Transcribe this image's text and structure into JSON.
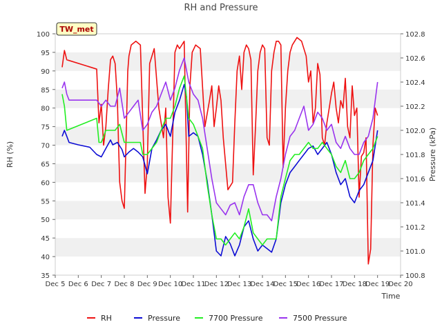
{
  "chart_data": {
    "type": "line",
    "title": "RH and Pressure",
    "xlabel": "Time",
    "ylabel_left": "RH (%)",
    "ylabel_right": "Pressure (kPa)",
    "station_label": "TW_met",
    "x_tick_labels": [
      "Dec 5",
      "Dec 6",
      "Dec 7",
      "Dec 8",
      "Dec 9",
      "Dec 10",
      "Dec 11",
      "Dec 12",
      "Dec 13",
      "Dec 14",
      "Dec 15",
      "Dec 16",
      "Dec 17",
      "Dec 18",
      "Dec 19",
      "Dec 20"
    ],
    "xlim": [
      5,
      20
    ],
    "ylim_left": [
      35,
      100
    ],
    "ylim_right": [
      100.8,
      102.8
    ],
    "y_ticks_left": [
      35,
      40,
      45,
      50,
      55,
      60,
      65,
      70,
      75,
      80,
      85,
      90,
      95,
      100
    ],
    "y_ticks_right": [
      "100.8",
      "101.0",
      "101.2",
      "101.4",
      "101.6",
      "101.8",
      "102.0",
      "102.2",
      "102.4",
      "102.6",
      "102.8"
    ],
    "grid": "horizontal bands",
    "legend_position": "bottom",
    "series": [
      {
        "name": "RH",
        "axis": "left",
        "color": "#ee1111",
        "x": [
          5.3,
          5.4,
          5.5,
          6.8,
          6.9,
          7.0,
          7.1,
          7.2,
          7.3,
          7.4,
          7.5,
          7.6,
          7.7,
          7.75,
          7.8,
          7.9,
          8.0,
          8.1,
          8.15,
          8.2,
          8.3,
          8.5,
          8.7,
          8.9,
          9.0,
          9.1,
          9.3,
          9.5,
          9.7,
          9.8,
          9.9,
          10.0,
          10.1,
          10.2,
          10.3,
          10.4,
          10.6,
          10.75,
          10.85,
          10.95,
          11.1,
          11.3,
          11.5,
          11.7,
          11.8,
          11.9,
          12.0,
          12.1,
          12.2,
          12.3,
          12.5,
          12.7,
          12.8,
          12.9,
          13.0,
          13.1,
          13.2,
          13.3,
          13.4,
          13.5,
          13.6,
          13.7,
          13.8,
          13.9,
          14.0,
          14.1,
          14.2,
          14.3,
          14.4,
          14.5,
          14.6,
          14.7,
          14.8,
          14.9,
          15.0,
          15.1,
          15.2,
          15.3,
          15.5,
          15.7,
          15.9,
          16.0,
          16.1,
          16.2,
          16.3,
          16.4,
          16.5,
          16.6,
          16.7,
          16.8,
          16.9,
          17.0,
          17.1,
          17.2,
          17.3,
          17.4,
          17.5,
          17.6,
          17.7,
          17.8,
          17.9,
          18.0,
          18.1,
          18.2,
          18.3,
          18.4,
          18.5,
          18.6,
          18.7,
          18.8,
          18.9,
          19.0
        ],
        "y": [
          91,
          95.5,
          93,
          90.5,
          76,
          81,
          70,
          75,
          85,
          93,
          94,
          92,
          82,
          70,
          60,
          55,
          53,
          77,
          90,
          94,
          97,
          98,
          97,
          57,
          65,
          92,
          96,
          80,
          72,
          80,
          56,
          49,
          72,
          95,
          97,
          96,
          98,
          52,
          86,
          95,
          97,
          96,
          75,
          82,
          86,
          75,
          80,
          86,
          82,
          72,
          58,
          60,
          76,
          90,
          94,
          85,
          95,
          97,
          96,
          93,
          62,
          75,
          90,
          95,
          97,
          96,
          72,
          70,
          90,
          95,
          98,
          98,
          97,
          64,
          80,
          90,
          95,
          97,
          99,
          98,
          94,
          87,
          90,
          76,
          80,
          92,
          89,
          72,
          70,
          76,
          80,
          84,
          87,
          80,
          76,
          82,
          80,
          88,
          75,
          72,
          86,
          78,
          80,
          56,
          67,
          68,
          72,
          38,
          42,
          70,
          80,
          78
        ]
      },
      {
        "name": "Pressure",
        "axis": "right",
        "color": "#0b0bd4",
        "x": [
          5.3,
          5.4,
          5.5,
          5.6,
          6.0,
          6.5,
          6.8,
          7.0,
          7.2,
          7.4,
          7.5,
          7.7,
          7.9,
          8.0,
          8.2,
          8.4,
          8.6,
          8.8,
          9.0,
          9.2,
          9.4,
          9.6,
          9.8,
          10.0,
          10.2,
          10.4,
          10.6,
          10.7,
          10.8,
          11.0,
          11.2,
          11.4,
          11.6,
          11.8,
          11.9,
          12.0,
          12.2,
          12.4,
          12.6,
          12.8,
          13.0,
          13.2,
          13.4,
          13.6,
          13.8,
          14.0,
          14.2,
          14.4,
          14.6,
          14.8,
          15.0,
          15.2,
          15.4,
          15.6,
          15.8,
          16.0,
          16.2,
          16.4,
          16.6,
          16.8,
          17.0,
          17.2,
          17.4,
          17.6,
          17.8,
          18.0,
          18.2,
          18.4,
          18.6,
          18.8,
          19.0
        ],
        "y": [
          101.95,
          102.0,
          101.95,
          101.9,
          101.88,
          101.86,
          101.8,
          101.78,
          101.85,
          101.92,
          101.88,
          101.9,
          101.84,
          101.78,
          101.82,
          101.85,
          101.82,
          101.78,
          101.64,
          101.85,
          101.92,
          102.0,
          102.05,
          101.95,
          102.15,
          102.25,
          102.38,
          102.28,
          101.95,
          101.98,
          101.95,
          101.8,
          101.58,
          101.3,
          101.15,
          101.0,
          100.96,
          101.12,
          101.06,
          100.96,
          101.05,
          101.2,
          101.25,
          101.1,
          101.0,
          101.05,
          101.02,
          100.99,
          101.1,
          101.4,
          101.55,
          101.65,
          101.7,
          101.75,
          101.8,
          101.85,
          101.87,
          101.8,
          101.85,
          101.9,
          101.8,
          101.65,
          101.55,
          101.6,
          101.45,
          101.4,
          101.5,
          101.55,
          101.65,
          101.75,
          102.0
        ]
      },
      {
        "name": "7700 Pressure",
        "axis": "right",
        "color": "#22ee22",
        "x": [
          5.3,
          5.4,
          5.5,
          6.8,
          6.9,
          7.0,
          7.2,
          7.6,
          7.8,
          8.0,
          8.4,
          8.7,
          8.8,
          9.0,
          9.4,
          9.6,
          9.8,
          10.0,
          10.2,
          10.4,
          10.6,
          10.8,
          11.0,
          11.2,
          11.4,
          11.6,
          11.8,
          11.9,
          12.0,
          12.2,
          12.4,
          12.6,
          12.8,
          13.0,
          13.2,
          13.4,
          13.6,
          13.8,
          14.0,
          14.2,
          14.4,
          14.6,
          14.8,
          15.0,
          15.2,
          15.4,
          15.6,
          15.8,
          16.0,
          16.2,
          16.4,
          16.6,
          16.8,
          17.0,
          17.2,
          17.4,
          17.6,
          17.8,
          18.0,
          18.2,
          18.4,
          18.6,
          18.8,
          19.0
        ],
        "y": [
          102.3,
          102.2,
          102.0,
          102.1,
          101.9,
          101.9,
          102.0,
          102.0,
          102.05,
          101.9,
          101.9,
          101.9,
          101.8,
          101.8,
          101.9,
          102.0,
          102.1,
          102.1,
          102.2,
          102.35,
          102.45,
          102.1,
          102.05,
          101.95,
          101.85,
          101.55,
          101.3,
          101.2,
          101.1,
          101.1,
          101.05,
          101.1,
          101.15,
          101.1,
          101.2,
          101.35,
          101.15,
          101.1,
          101.05,
          101.1,
          101.1,
          101.1,
          101.45,
          101.6,
          101.75,
          101.8,
          101.8,
          101.85,
          101.9,
          101.85,
          101.85,
          101.9,
          101.85,
          101.8,
          101.7,
          101.65,
          101.75,
          101.6,
          101.6,
          101.65,
          101.75,
          101.8,
          101.85,
          101.95
        ]
      },
      {
        "name": "7500 Pressure",
        "axis": "right",
        "color": "#9933ee",
        "x": [
          5.3,
          5.4,
          5.5,
          5.6,
          6.0,
          6.5,
          6.8,
          7.0,
          7.2,
          7.4,
          7.6,
          7.8,
          8.0,
          8.2,
          8.4,
          8.6,
          8.8,
          9.0,
          9.2,
          9.4,
          9.6,
          9.8,
          10.0,
          10.2,
          10.4,
          10.6,
          10.8,
          11.0,
          11.2,
          11.4,
          11.6,
          11.8,
          12.0,
          12.2,
          12.4,
          12.6,
          12.8,
          13.0,
          13.2,
          13.4,
          13.6,
          13.8,
          14.0,
          14.2,
          14.4,
          14.6,
          14.8,
          15.0,
          15.2,
          15.4,
          15.6,
          15.8,
          16.0,
          16.2,
          16.4,
          16.6,
          16.8,
          17.0,
          17.2,
          17.4,
          17.6,
          17.8,
          18.0,
          18.2,
          18.4,
          18.6,
          18.8,
          19.0
        ],
        "y": [
          102.35,
          102.4,
          102.3,
          102.25,
          102.25,
          102.25,
          102.25,
          102.2,
          102.25,
          102.2,
          102.2,
          102.35,
          102.1,
          102.15,
          102.2,
          102.25,
          102.0,
          102.05,
          102.15,
          102.2,
          102.3,
          102.4,
          102.25,
          102.35,
          102.5,
          102.6,
          102.4,
          102.3,
          102.25,
          102.1,
          101.85,
          101.6,
          101.4,
          101.35,
          101.3,
          101.38,
          101.4,
          101.3,
          101.45,
          101.55,
          101.55,
          101.4,
          101.3,
          101.3,
          101.25,
          101.45,
          101.6,
          101.8,
          101.95,
          102.0,
          102.1,
          102.2,
          102.0,
          102.05,
          102.15,
          102.1,
          102.0,
          102.05,
          101.9,
          101.85,
          101.95,
          101.85,
          101.8,
          101.8,
          101.9,
          101.95,
          102.1,
          102.4
        ]
      }
    ]
  }
}
